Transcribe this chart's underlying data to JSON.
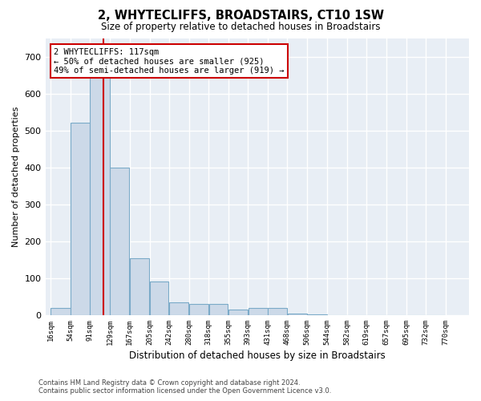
{
  "title": "2, WHYTECLIFFS, BROADSTAIRS, CT10 1SW",
  "subtitle": "Size of property relative to detached houses in Broadstairs",
  "xlabel": "Distribution of detached houses by size in Broadstairs",
  "ylabel": "Number of detached properties",
  "bar_color": "#ccd9e8",
  "bar_edge_color": "#7aaac8",
  "background_color": "#e8eef5",
  "grid_color": "#ffffff",
  "red_line_x": 117,
  "bin_edges": [
    16,
    54,
    91,
    129,
    167,
    205,
    242,
    280,
    318,
    355,
    393,
    431,
    468,
    506,
    544,
    582,
    619,
    657,
    695,
    732,
    770
  ],
  "tick_labels": [
    "16sqm",
    "54sqm",
    "91sqm",
    "129sqm",
    "167sqm",
    "205sqm",
    "242sqm",
    "280sqm",
    "318sqm",
    "355sqm",
    "393sqm",
    "431sqm",
    "468sqm",
    "506sqm",
    "544sqm",
    "582sqm",
    "619sqm",
    "657sqm",
    "695sqm",
    "732sqm",
    "770sqm"
  ],
  "bar_heights": [
    20,
    520,
    680,
    400,
    155,
    90,
    35,
    30,
    30,
    15,
    20,
    20,
    5,
    3,
    0,
    0,
    0,
    0,
    0,
    0
  ],
  "annotation_text": "2 WHYTECLIFFS: 117sqm\n← 50% of detached houses are smaller (925)\n49% of semi-detached houses are larger (919) →",
  "annotation_box_color": "#ffffff",
  "annotation_box_edge_color": "#cc0000",
  "ylim": [
    0,
    750
  ],
  "yticks": [
    0,
    100,
    200,
    300,
    400,
    500,
    600,
    700
  ],
  "footer_line1": "Contains HM Land Registry data © Crown copyright and database right 2024.",
  "footer_line2": "Contains public sector information licensed under the Open Government Licence v3.0."
}
